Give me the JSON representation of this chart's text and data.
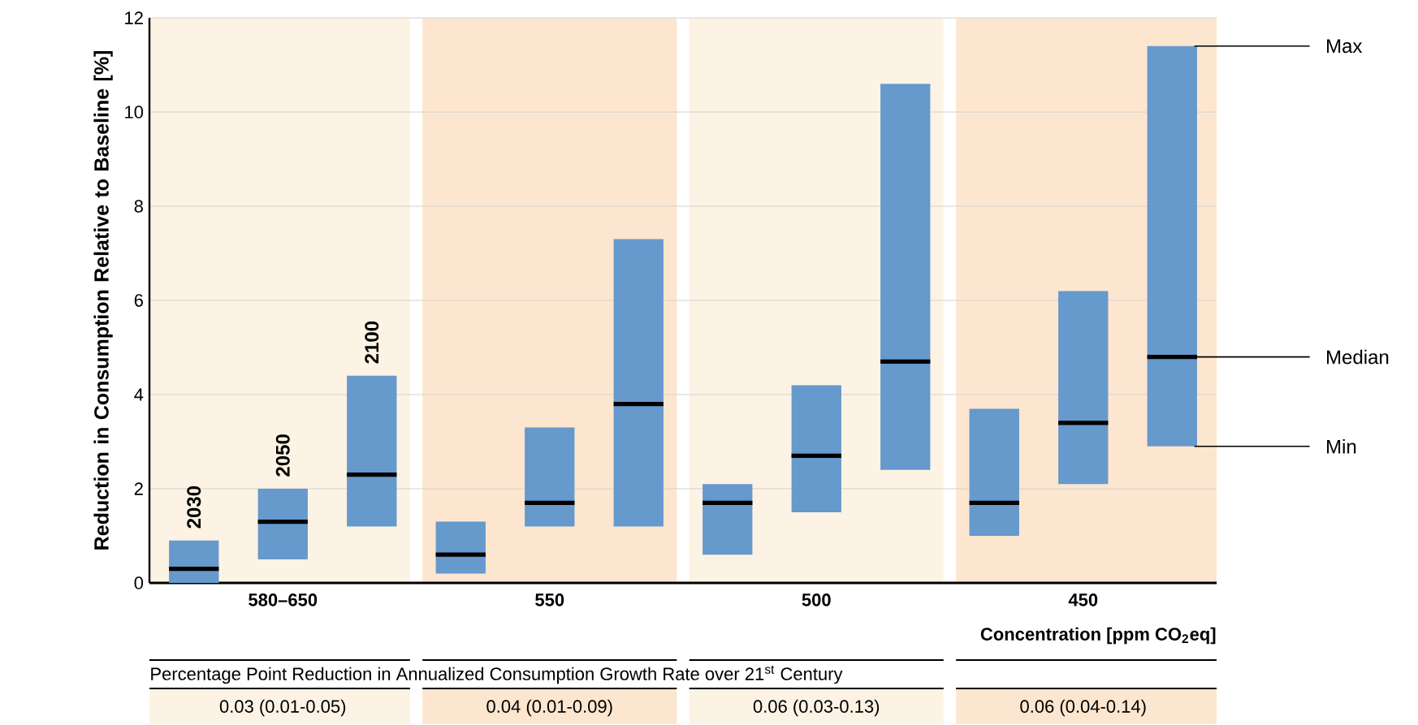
{
  "chart_data": {
    "type": "box",
    "categories": [
      null,
      null,
      null,
      null,
      null,
      null,
      null,
      null,
      null,
      null,
      null,
      null
    ],
    "xlabel": "Concentration [ppm CO$_{2}$eq]",
    "ylabel": "Reduction in Consumption Relative to Baseline [%]",
    "color": "#6699cc",
    "ylim": [
      0,
      12
    ],
    "yticks": [
      0,
      2,
      4,
      6,
      8,
      10,
      12
    ],
    "grid": "y",
    "boxes": [
      {
        "low": 0,
        "q1": 0,
        "median": 0.3,
        "q3": 0.9,
        "high": 0.9
      },
      {
        "low": 0.5,
        "q1": 0.5,
        "median": 1.3,
        "q3": 2.0,
        "high": 2.0
      },
      {
        "low": 1.2,
        "q1": 1.2,
        "median": 2.3,
        "q3": 4.4,
        "high": 4.4
      },
      {
        "low": 0.2,
        "q1": 0.2,
        "median": 0.6,
        "q3": 1.3,
        "high": 1.3
      },
      {
        "low": 1.2,
        "q1": 1.2,
        "median": 1.7,
        "q3": 3.3,
        "high": 3.3
      },
      {
        "low": 1.2,
        "q1": 1.2,
        "median": 3.8,
        "q3": 7.3,
        "high": 7.3
      },
      {
        "low": 0.6,
        "q1": 0.6,
        "median": 1.7,
        "q3": 2.1,
        "high": 2.1
      },
      {
        "low": 1.5,
        "q1": 1.5,
        "median": 2.7,
        "q3": 4.2,
        "high": 4.2
      },
      {
        "low": 2.4,
        "q1": 2.4,
        "median": 4.7,
        "q3": 10.6,
        "high": 10.6
      },
      {
        "low": 1.0,
        "q1": 1.0,
        "median": 1.7,
        "q3": 3.7,
        "high": 3.7
      },
      {
        "low": 2.1,
        "q1": 2.1,
        "median": 3.4,
        "q3": 6.2,
        "high": 6.2
      },
      {
        "low": 2.9,
        "q1": 2.9,
        "median": 4.8,
        "q3": 11.4,
        "high": 11.4
      }
    ],
    "annotations": [
      "2030",
      "2050",
      "2100",
      "580–650",
      "550",
      "500",
      "450",
      "Percentage Point Reduction in Annualized Consumption Growth Rate over 21$^{st}$ Century",
      "0.03 (0.01-0.05)",
      "0.04 (0.01-0.09)",
      "0.06 (0.03-0.13)",
      "0.06 (0.04-0.14)",
      "Max",
      "Median",
      "Min"
    ]
  }
}
